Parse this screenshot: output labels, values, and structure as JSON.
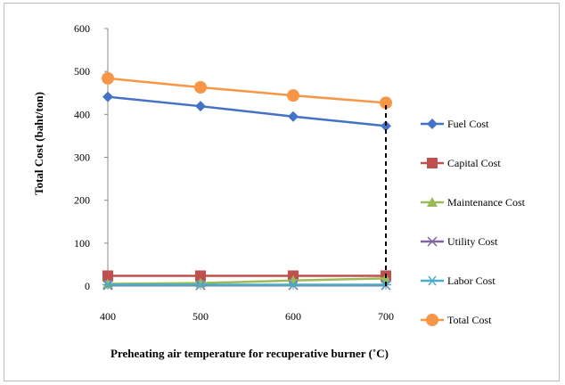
{
  "chart_data": {
    "type": "line",
    "title": "",
    "xlabel": "Preheating air temperature for recuperative burner (˚C)",
    "ylabel": "Total Cost (baht/ton)",
    "x": [
      400,
      500,
      600,
      700
    ],
    "x_ticks": [
      "400",
      "500",
      "600",
      "700"
    ],
    "ylim": [
      0,
      600
    ],
    "y_ticks": [
      "0",
      "100",
      "200",
      "300",
      "400",
      "500",
      "600"
    ],
    "grid": false,
    "legend_position": "right",
    "series": [
      {
        "name": "Fuel Cost",
        "values": [
          441,
          419,
          395,
          373
        ],
        "color": "#4472c4",
        "marker": "diamond"
      },
      {
        "name": "Capital Cost",
        "values": [
          24,
          24,
          24,
          24
        ],
        "color": "#c0504d",
        "marker": "square"
      },
      {
        "name": "Maintenance Cost",
        "values": [
          5,
          7,
          13,
          18
        ],
        "color": "#9bbb59",
        "marker": "triangle"
      },
      {
        "name": "Utility Cost",
        "values": [
          2,
          2,
          2,
          2
        ],
        "color": "#8064a2",
        "marker": "x"
      },
      {
        "name": "Labor Cost",
        "values": [
          3,
          3,
          3,
          3
        ],
        "color": "#4bacc6",
        "marker": "star"
      },
      {
        "name": "Total Cost",
        "values": [
          484,
          463,
          444,
          427
        ],
        "color": "#f79646",
        "marker": "circle"
      }
    ],
    "annotations": [
      {
        "type": "vertical-dashed-line",
        "x": 700,
        "y_from": 0,
        "y_to": 427
      }
    ]
  }
}
